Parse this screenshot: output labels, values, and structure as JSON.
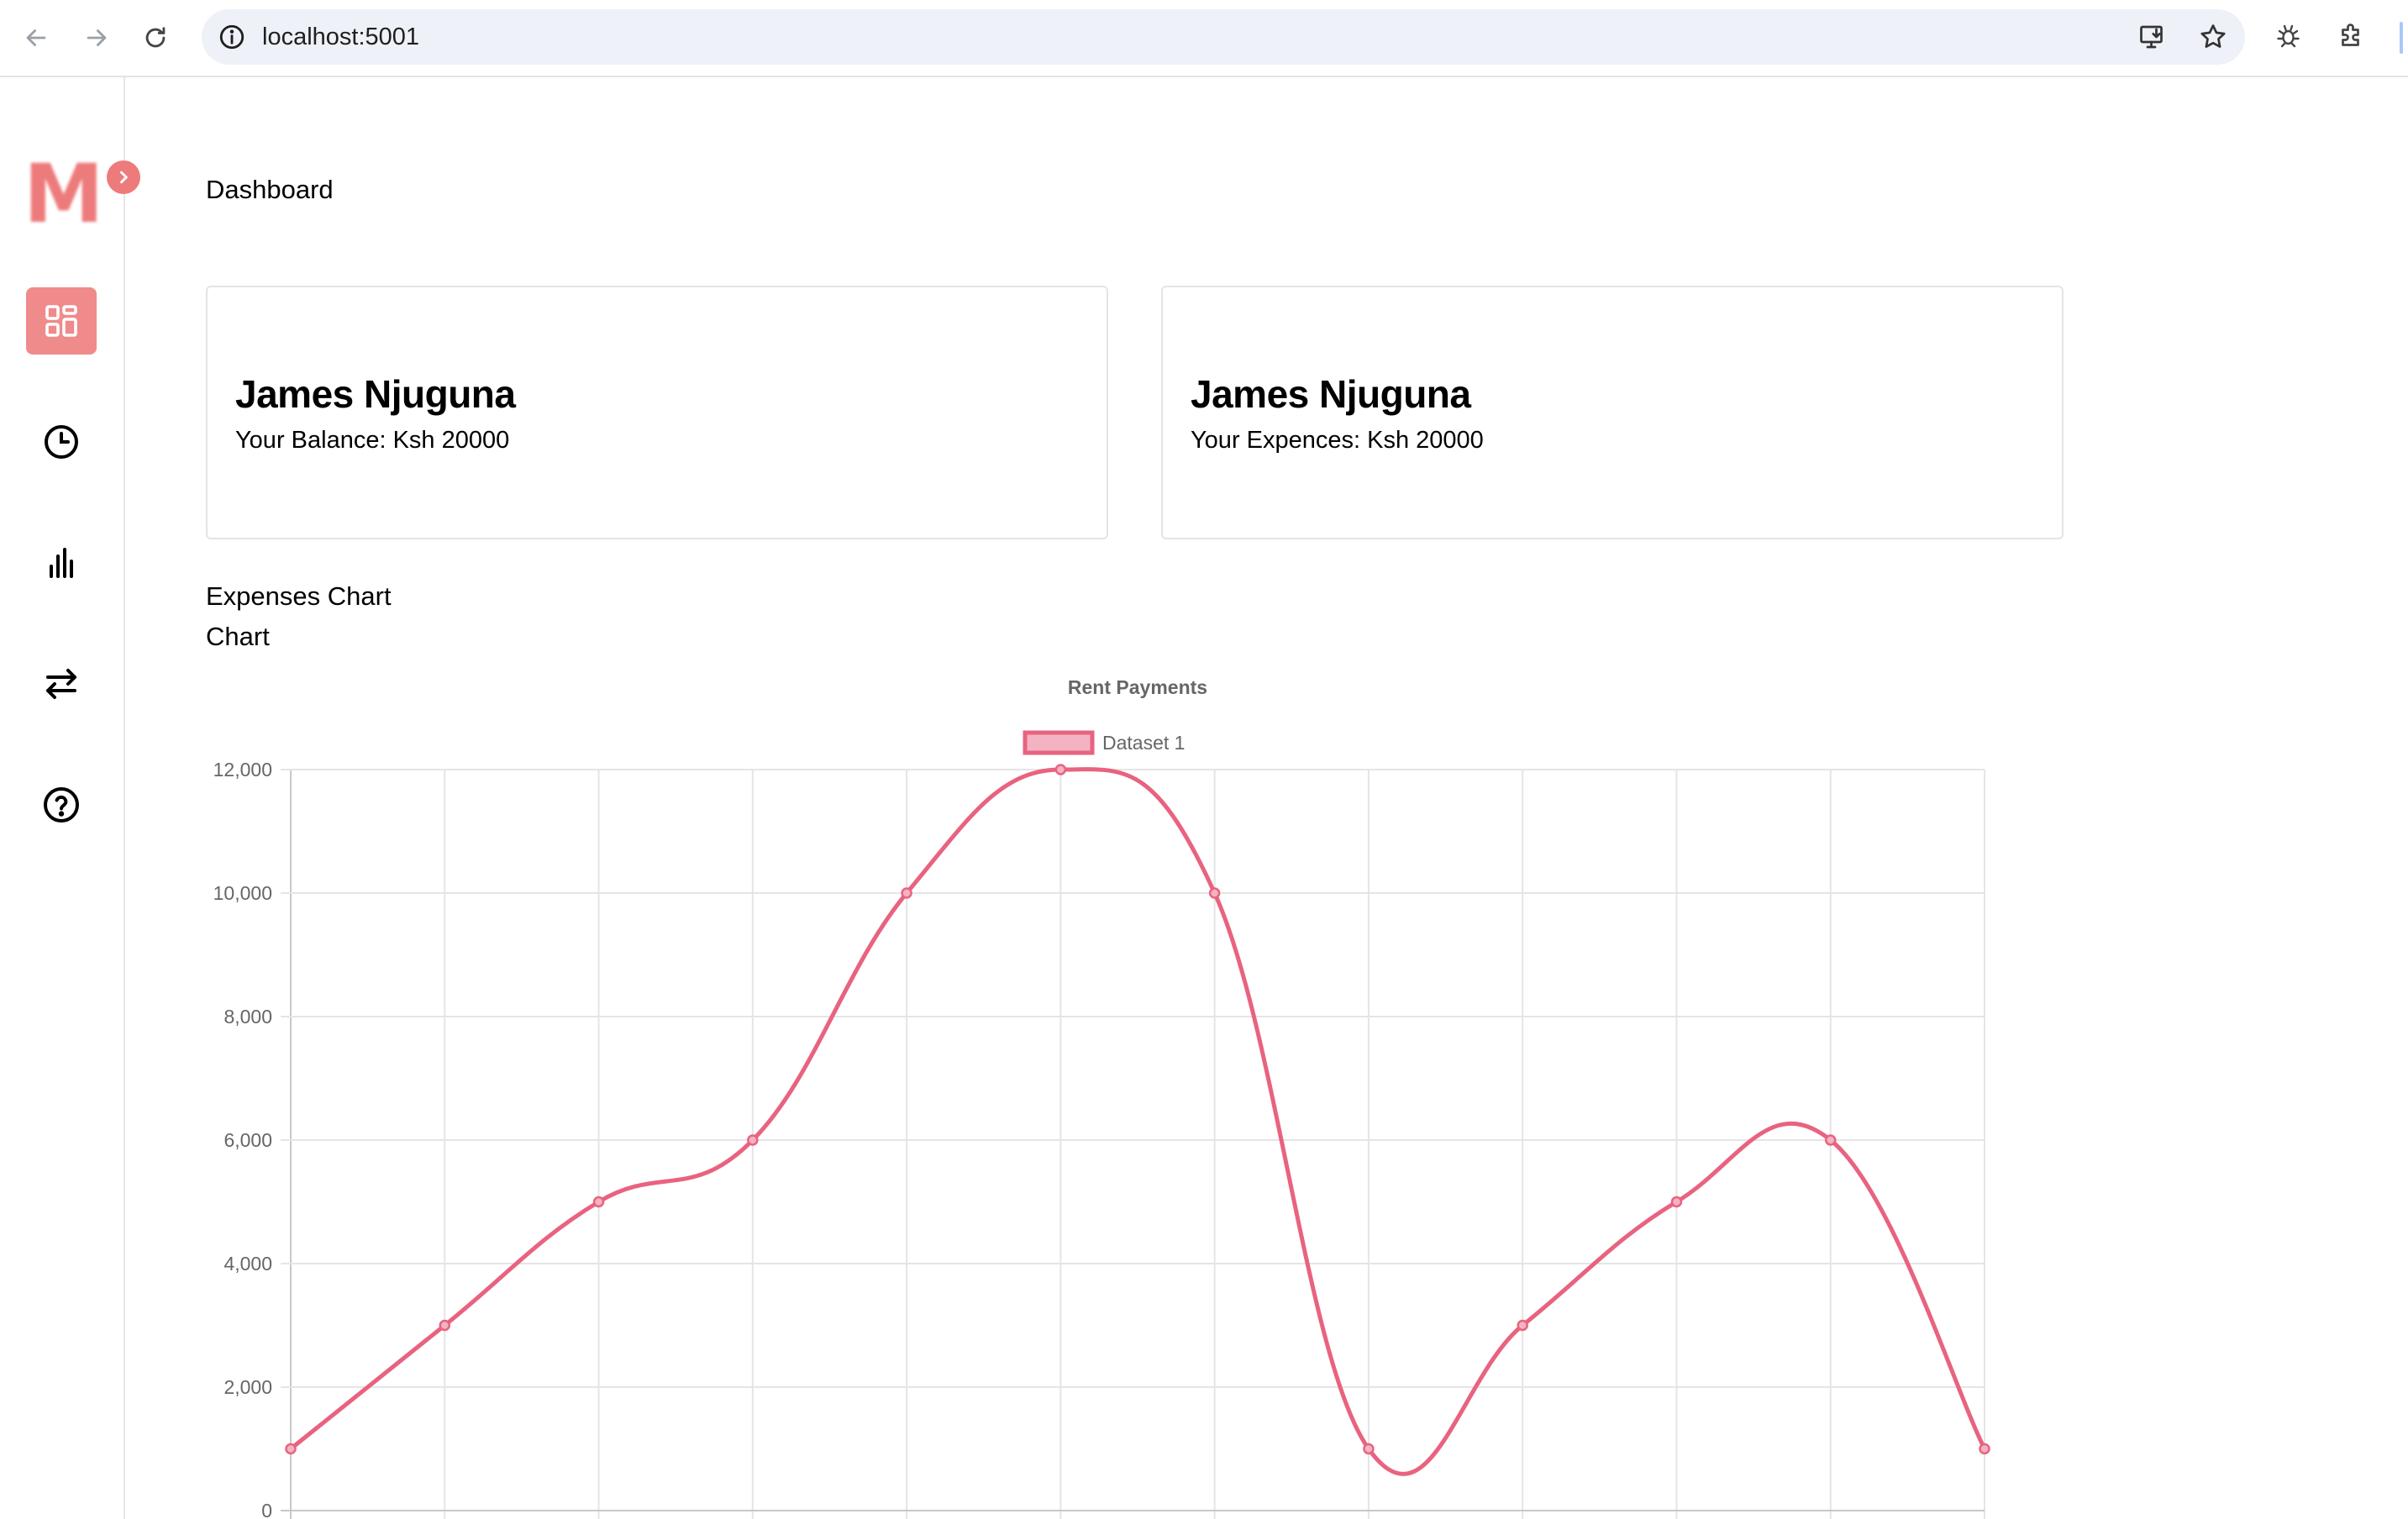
{
  "browser": {
    "url": "localhost:5001",
    "icons": [
      "back-arrow-icon",
      "forward-arrow-icon",
      "reload-icon",
      "site-info-icon",
      "install-app-icon",
      "bookmark-star-icon",
      "extension-bug-icon",
      "extensions-puzzle-icon"
    ]
  },
  "sidebar": {
    "logo_letter": "M",
    "accent": "#ee7b7b",
    "items": [
      {
        "icon": "dashboard-grid-icon",
        "active": true
      },
      {
        "icon": "clock-icon",
        "active": false
      },
      {
        "icon": "bar-chart-icon",
        "active": false
      },
      {
        "icon": "transfer-arrows-icon",
        "active": false
      },
      {
        "icon": "help-circle-icon",
        "active": false
      }
    ]
  },
  "main": {
    "title": "Dashboard",
    "cards": [
      {
        "name": "James Njuguna",
        "line": "Your Balance: Ksh 20000"
      },
      {
        "name": "James Njuguna",
        "line": "Your Expences: Ksh 20000"
      }
    ],
    "section_title": "Expenses Chart",
    "section_subtitle": "Chart"
  },
  "chart_data": {
    "type": "line",
    "title": "Rent Payments",
    "series": [
      {
        "name": "Dataset 1",
        "color": "#e8637f",
        "fill": "#f4b3c2",
        "values": [
          1000,
          3000,
          5000,
          6000,
          10000,
          12000,
          10000,
          1000,
          3000,
          5000,
          6000,
          1000
        ]
      }
    ],
    "ylim": [
      0,
      12000
    ],
    "yticks": [
      "0",
      "2,000",
      "4,000",
      "6,000",
      "8,000",
      "10,000",
      "12,000"
    ],
    "grid": true,
    "legend": "top-center",
    "smooth": true
  }
}
